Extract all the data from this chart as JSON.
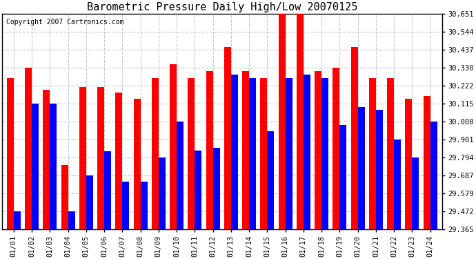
{
  "title": "Barometric Pressure Daily High/Low 20070125",
  "copyright": "Copyright 2007 Cartronics.com",
  "dates": [
    "01/01",
    "01/02",
    "01/03",
    "01/04",
    "01/05",
    "01/06",
    "01/07",
    "01/08",
    "01/09",
    "01/10",
    "01/11",
    "01/12",
    "01/13",
    "01/14",
    "01/15",
    "01/16",
    "01/17",
    "01/18",
    "01/19",
    "01/20",
    "01/21",
    "01/22",
    "01/23",
    "01/24"
  ],
  "highs": [
    30.27,
    30.33,
    30.2,
    29.75,
    30.215,
    30.215,
    30.18,
    30.145,
    30.27,
    30.35,
    30.27,
    30.31,
    30.455,
    30.31,
    30.27,
    30.651,
    30.651,
    30.31,
    30.33,
    30.455,
    30.27,
    30.27,
    30.145,
    30.16
  ],
  "lows": [
    29.472,
    30.115,
    30.115,
    29.472,
    29.687,
    29.83,
    29.651,
    29.651,
    29.794,
    30.008,
    29.837,
    29.85,
    30.29,
    30.27,
    29.95,
    30.27,
    30.29,
    30.27,
    29.987,
    30.094,
    30.08,
    29.901,
    29.794,
    30.008
  ],
  "high_color": "#FF0000",
  "low_color": "#0000FF",
  "bg_color": "#FFFFFF",
  "grid_color": "#C8C8C8",
  "ymin": 29.365,
  "ymax": 30.651,
  "yticks": [
    30.651,
    30.544,
    30.437,
    30.33,
    30.222,
    30.115,
    30.008,
    29.901,
    29.794,
    29.687,
    29.579,
    29.472,
    29.365
  ],
  "title_fontsize": 11,
  "copyright_fontsize": 7,
  "bar_width": 0.38
}
